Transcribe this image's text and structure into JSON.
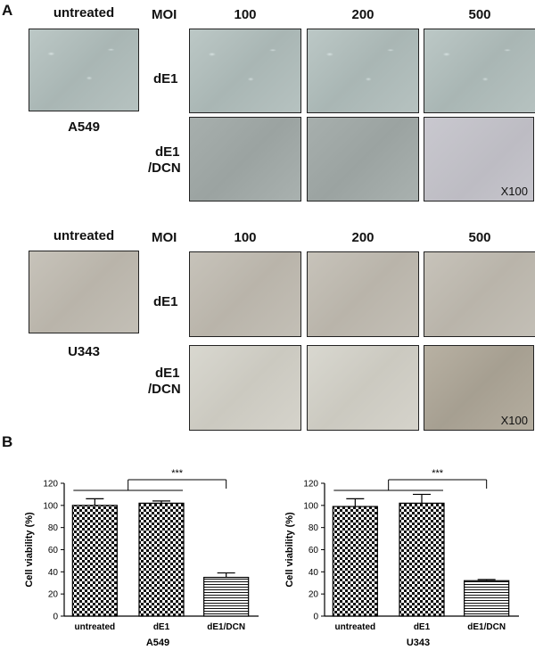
{
  "panel_a": {
    "letter": "A",
    "groups": [
      {
        "untreated_label": "untreated",
        "cell_line": "A549",
        "moi_label": "MOI",
        "moi_values": [
          "100",
          "200",
          "500"
        ],
        "row_labels": [
          [
            "dE1"
          ],
          [
            "dE1",
            "/DCN"
          ]
        ],
        "magnification": "X100"
      },
      {
        "untreated_label": "untreated",
        "cell_line": "U343",
        "moi_label": "MOI",
        "moi_values": [
          "100",
          "200",
          "500"
        ],
        "row_labels": [
          [
            "dE1"
          ],
          [
            "dE1",
            "/DCN"
          ]
        ],
        "magnification": "X100"
      }
    ]
  },
  "panel_b": {
    "letter": "B"
  },
  "chart_data": [
    {
      "type": "bar",
      "categories": [
        "untreated",
        "dE1",
        "dE1/DCN"
      ],
      "values": [
        100,
        102,
        35
      ],
      "errors": [
        6,
        2,
        4
      ],
      "ylabel": "Cell viability (%)",
      "xlabel": "A549",
      "ylim": [
        0,
        120
      ],
      "yticks": [
        0,
        20,
        40,
        60,
        80,
        100,
        120
      ],
      "significance": "***",
      "grid": false
    },
    {
      "type": "bar",
      "categories": [
        "untreated",
        "dE1",
        "dE1/DCN"
      ],
      "values": [
        99,
        102,
        32
      ],
      "errors": [
        7,
        8,
        1
      ],
      "ylabel": "Cell viability (%)",
      "xlabel": "U343",
      "ylim": [
        0,
        120
      ],
      "yticks": [
        0,
        20,
        40,
        60,
        80,
        100,
        120
      ],
      "significance": "***",
      "grid": false
    }
  ]
}
